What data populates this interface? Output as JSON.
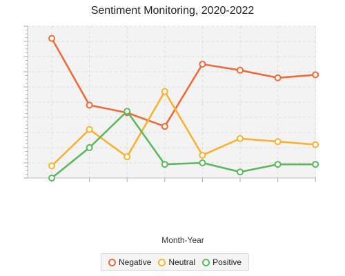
{
  "chart_data": {
    "type": "line",
    "title": "Sentiment Monitoring, 2020-2022",
    "xlabel": "Month-Year",
    "ylabel": "",
    "grid": true,
    "legend_position": "bottom",
    "categories": [
      "",
      "",
      "",
      "",
      "",
      "",
      "",
      ""
    ],
    "ylim": [
      0,
      100
    ],
    "series": [
      {
        "name": "Negative",
        "color": "#ee6a38",
        "values": [
          92,
          48,
          43,
          34,
          75,
          71,
          66,
          68
        ]
      },
      {
        "name": "Neutral",
        "color": "#f7b231",
        "values": [
          8,
          32,
          14,
          57,
          15,
          26,
          24,
          22
        ]
      },
      {
        "name": "Positive",
        "color": "#5cb85c",
        "values": [
          0,
          20,
          44,
          9,
          10,
          4,
          9,
          9
        ]
      }
    ]
  }
}
